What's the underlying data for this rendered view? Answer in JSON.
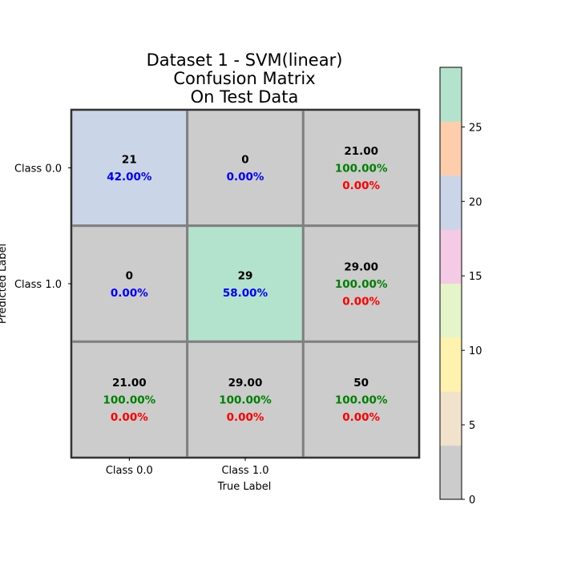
{
  "chart_data": {
    "type": "heatmap",
    "title_lines": [
      "Dataset 1 - SVM(linear)",
      "Confusion Matrix",
      "On Test Data"
    ],
    "xlabel": "True Label",
    "ylabel": "Predicted Label",
    "x_tick_labels": [
      "Class 0.0",
      "Class 1.0",
      ""
    ],
    "y_tick_labels": [
      "Class 0.0",
      "Class 1.0",
      ""
    ],
    "cells": [
      [
        {
          "value": 21,
          "lines": [
            {
              "text": "21",
              "color": "#000000"
            },
            {
              "text": "42.00%",
              "color": "#0000ff"
            }
          ]
        },
        {
          "value": 0,
          "lines": [
            {
              "text": "0",
              "color": "#000000"
            },
            {
              "text": "0.00%",
              "color": "#0000ff"
            }
          ]
        },
        {
          "value": 0,
          "lines": [
            {
              "text": "21.00",
              "color": "#000000"
            },
            {
              "text": "100.00%",
              "color": "#008000"
            },
            {
              "text": "0.00%",
              "color": "#ff0000"
            }
          ]
        }
      ],
      [
        {
          "value": 0,
          "lines": [
            {
              "text": "0",
              "color": "#000000"
            },
            {
              "text": "0.00%",
              "color": "#0000ff"
            }
          ]
        },
        {
          "value": 29,
          "lines": [
            {
              "text": "29",
              "color": "#000000"
            },
            {
              "text": "58.00%",
              "color": "#0000ff"
            }
          ]
        },
        {
          "value": 0,
          "lines": [
            {
              "text": "29.00",
              "color": "#000000"
            },
            {
              "text": "100.00%",
              "color": "#008000"
            },
            {
              "text": "0.00%",
              "color": "#ff0000"
            }
          ]
        }
      ],
      [
        {
          "value": 0,
          "lines": [
            {
              "text": "21.00",
              "color": "#000000"
            },
            {
              "text": "100.00%",
              "color": "#008000"
            },
            {
              "text": "0.00%",
              "color": "#ff0000"
            }
          ]
        },
        {
          "value": 0,
          "lines": [
            {
              "text": "29.00",
              "color": "#000000"
            },
            {
              "text": "100.00%",
              "color": "#008000"
            },
            {
              "text": "0.00%",
              "color": "#ff0000"
            }
          ]
        },
        {
          "value": 0,
          "lines": [
            {
              "text": "50",
              "color": "#000000"
            },
            {
              "text": "100.00%",
              "color": "#008000"
            },
            {
              "text": "0.00%",
              "color": "#ff0000"
            }
          ]
        }
      ]
    ],
    "colormap": "Pastel2 (reversed)",
    "colorbar": {
      "range": [
        0,
        29
      ],
      "ticks": [
        0,
        5,
        10,
        15,
        20,
        25
      ],
      "tick_labels": [
        "0",
        "5",
        "10",
        "15",
        "20",
        "25"
      ],
      "colors": [
        "#cccccc",
        "#f1e2cc",
        "#fff2ae",
        "#e6f5c9",
        "#f4cae4",
        "#cbd5e8",
        "#fdcdac",
        "#b3e2cd"
      ]
    },
    "grid_color": "#808080"
  }
}
